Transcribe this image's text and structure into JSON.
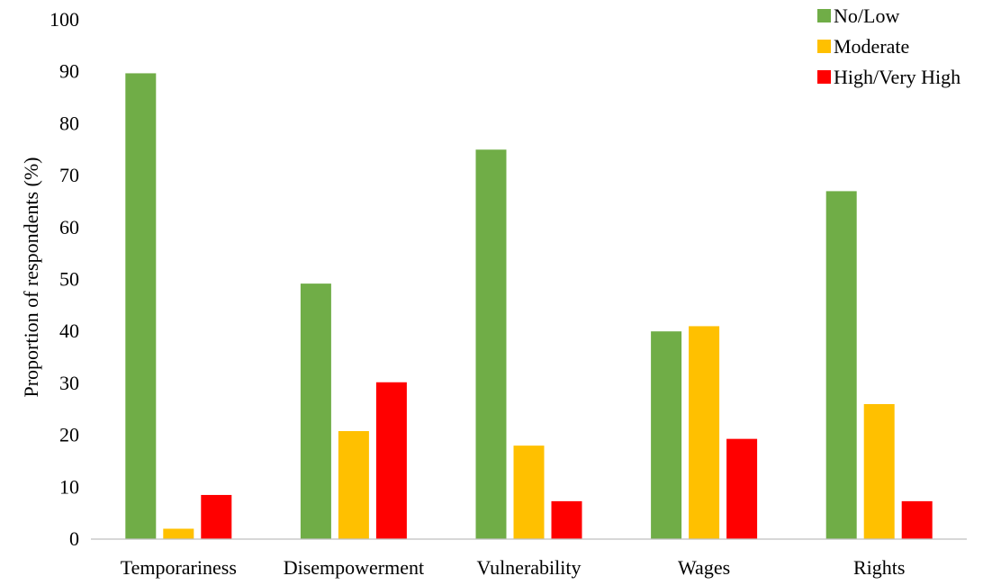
{
  "chart_data": {
    "type": "bar",
    "categories": [
      "Temporariness",
      "Disempowerment",
      "Vulnerability",
      "Wages",
      "Rights"
    ],
    "series": [
      {
        "name": "No/Low",
        "color": "#70AD47",
        "values": [
          89.7,
          49.2,
          75.0,
          40.0,
          67.0
        ]
      },
      {
        "name": "Moderate",
        "color": "#FFC000",
        "values": [
          2.0,
          20.8,
          18.0,
          41.0,
          26.0
        ]
      },
      {
        "name": "High/Very High",
        "color": "#FF0000",
        "values": [
          8.5,
          30.2,
          7.3,
          19.3,
          7.3
        ]
      }
    ],
    "title": "",
    "xlabel": "",
    "ylabel": "Proportion of respondents (%)",
    "ylim": [
      0,
      100
    ],
    "yticks": [
      0,
      10,
      20,
      30,
      40,
      50,
      60,
      70,
      80,
      90,
      100
    ],
    "grid": false,
    "legend_position": "top-right",
    "axis_color": "#BFBFBF"
  }
}
